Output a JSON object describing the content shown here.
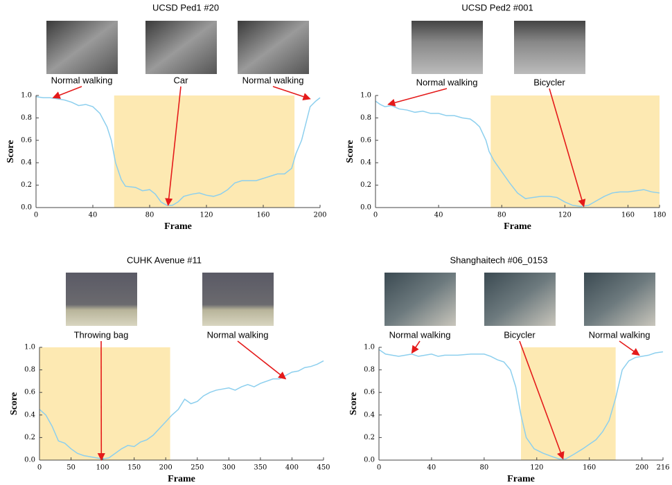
{
  "chart_data": [
    {
      "type": "line",
      "title": "UCSD Ped1 #20",
      "x_label": "Frame",
      "y_label": "Score",
      "x": [
        0,
        5,
        10,
        15,
        20,
        25,
        30,
        35,
        40,
        45,
        50,
        53,
        56,
        60,
        63,
        70,
        75,
        80,
        84,
        88,
        92,
        96,
        100,
        104,
        110,
        115,
        120,
        125,
        130,
        135,
        140,
        145,
        150,
        155,
        160,
        165,
        170,
        175,
        180,
        183,
        187,
        190,
        193,
        197,
        200
      ],
      "series": [
        {
          "color": "#8ccfee",
          "values": [
            0.99,
            0.98,
            0.98,
            0.97,
            0.96,
            0.94,
            0.91,
            0.92,
            0.9,
            0.84,
            0.72,
            0.6,
            0.4,
            0.25,
            0.19,
            0.18,
            0.15,
            0.16,
            0.12,
            0.05,
            0.02,
            0.02,
            0.05,
            0.1,
            0.12,
            0.13,
            0.11,
            0.1,
            0.12,
            0.16,
            0.22,
            0.24,
            0.24,
            0.24,
            0.26,
            0.28,
            0.3,
            0.3,
            0.35,
            0.48,
            0.6,
            0.75,
            0.9,
            0.95,
            0.98
          ]
        }
      ],
      "shaded_range": [
        55,
        182
      ],
      "shade_color": "#fde9b2",
      "annotations": [
        {
          "text": "Normal walking",
          "x": 12,
          "y": 0.98
        },
        {
          "text": "Car",
          "x": 93,
          "y": 0.02
        },
        {
          "text": "Normal walking",
          "x": 193,
          "y": 0.97
        }
      ],
      "arrow_color": "#e41a1a",
      "xlim": [
        0,
        200
      ],
      "xticks": [
        0,
        40,
        80,
        120,
        160,
        200
      ],
      "ylim": [
        0,
        1
      ],
      "yticks": [
        {
          "value": 0,
          "label": "0.0"
        },
        0.2,
        0.4,
        0.6,
        0.8,
        {
          "value": 1,
          "label": "1.0"
        }
      ]
    },
    {
      "type": "line",
      "title": "UCSD Ped2 #001",
      "x_label": "Frame",
      "y_label": "Score",
      "x": [
        0,
        3,
        6,
        10,
        15,
        20,
        25,
        30,
        35,
        40,
        45,
        50,
        55,
        60,
        63,
        66,
        70,
        72,
        75,
        80,
        85,
        90,
        95,
        100,
        105,
        110,
        115,
        120,
        125,
        130,
        135,
        140,
        145,
        150,
        155,
        160,
        165,
        170,
        175,
        180
      ],
      "series": [
        {
          "color": "#8ccfee",
          "values": [
            0.95,
            0.92,
            0.9,
            0.91,
            0.88,
            0.87,
            0.85,
            0.86,
            0.84,
            0.84,
            0.82,
            0.82,
            0.8,
            0.79,
            0.76,
            0.72,
            0.6,
            0.5,
            0.42,
            0.32,
            0.22,
            0.13,
            0.08,
            0.09,
            0.1,
            0.1,
            0.09,
            0.05,
            0.02,
            0.01,
            0.02,
            0.06,
            0.1,
            0.13,
            0.14,
            0.14,
            0.15,
            0.16,
            0.14,
            0.13
          ]
        }
      ],
      "shaded_range": [
        73,
        180
      ],
      "shade_color": "#fde9b2",
      "annotations": [
        {
          "text": "Normal walking",
          "x": 8,
          "y": 0.92
        },
        {
          "text": "Bicycler",
          "x": 132,
          "y": 0.01
        }
      ],
      "arrow_color": "#e41a1a",
      "xlim": [
        0,
        180
      ],
      "xticks": [
        0,
        40,
        80,
        120,
        160,
        180
      ],
      "ylim": [
        0,
        1
      ],
      "yticks": [
        {
          "value": 0,
          "label": "0.0"
        },
        0.2,
        0.4,
        0.6,
        0.8,
        {
          "value": 1,
          "label": "1.0"
        }
      ]
    },
    {
      "type": "line",
      "title": "CUHK Avenue #11",
      "x_label": "Frame",
      "y_label": "Score",
      "x": [
        0,
        10,
        20,
        30,
        40,
        50,
        60,
        70,
        80,
        90,
        100,
        110,
        120,
        130,
        140,
        150,
        160,
        170,
        180,
        190,
        200,
        210,
        220,
        230,
        240,
        250,
        260,
        270,
        280,
        290,
        300,
        310,
        320,
        330,
        340,
        350,
        360,
        370,
        380,
        390,
        400,
        410,
        420,
        430,
        440,
        450
      ],
      "series": [
        {
          "color": "#8ccfee",
          "values": [
            0.45,
            0.4,
            0.3,
            0.17,
            0.15,
            0.1,
            0.06,
            0.04,
            0.03,
            0.02,
            0.01,
            0.02,
            0.06,
            0.1,
            0.13,
            0.12,
            0.16,
            0.18,
            0.22,
            0.28,
            0.34,
            0.4,
            0.45,
            0.54,
            0.5,
            0.52,
            0.57,
            0.6,
            0.62,
            0.63,
            0.64,
            0.62,
            0.65,
            0.67,
            0.65,
            0.68,
            0.7,
            0.72,
            0.72,
            0.75,
            0.78,
            0.79,
            0.82,
            0.83,
            0.85,
            0.88
          ]
        }
      ],
      "shaded_range": [
        0,
        207
      ],
      "shade_color": "#fde9b2",
      "annotations": [
        {
          "text": "Throwing bag",
          "x": 98,
          "y": 0
        },
        {
          "text": "Normal walking",
          "x": 390,
          "y": 0.72
        }
      ],
      "arrow_color": "#e41a1a",
      "xlim": [
        0,
        450
      ],
      "xticks": [
        0,
        50,
        100,
        150,
        200,
        250,
        300,
        350,
        400,
        450
      ],
      "ylim": [
        0,
        1
      ],
      "yticks": [
        {
          "value": 0,
          "label": "0.0"
        },
        0.2,
        0.4,
        0.6,
        0.8,
        {
          "value": 1,
          "label": "1.0"
        }
      ]
    },
    {
      "type": "line",
      "title": "Shanghaitech #06_0153",
      "x_label": "Frame",
      "y_label": "Score",
      "x": [
        0,
        5,
        10,
        15,
        20,
        25,
        30,
        35,
        40,
        45,
        50,
        60,
        70,
        80,
        85,
        90,
        95,
        100,
        104,
        108,
        112,
        118,
        125,
        132,
        137,
        142,
        148,
        155,
        160,
        165,
        170,
        175,
        180,
        185,
        190,
        195,
        200,
        205,
        210,
        216
      ],
      "series": [
        {
          "color": "#8ccfee",
          "values": [
            0.98,
            0.94,
            0.93,
            0.92,
            0.93,
            0.94,
            0.92,
            0.93,
            0.94,
            0.92,
            0.93,
            0.93,
            0.94,
            0.94,
            0.92,
            0.89,
            0.87,
            0.8,
            0.65,
            0.4,
            0.2,
            0.1,
            0.06,
            0.03,
            0.01,
            0.01,
            0.05,
            0.1,
            0.14,
            0.18,
            0.25,
            0.35,
            0.55,
            0.8,
            0.88,
            0.91,
            0.92,
            0.93,
            0.95,
            0.96
          ]
        }
      ],
      "shaded_range": [
        108,
        180
      ],
      "shade_color": "#fde9b2",
      "annotations": [
        {
          "text": "Normal walking",
          "x": 25,
          "y": 0.95
        },
        {
          "text": "Bicycler",
          "x": 140,
          "y": 0.01
        },
        {
          "text": "Normal walking",
          "x": 198,
          "y": 0.93
        }
      ],
      "arrow_color": "#e41a1a",
      "xlim": [
        0,
        216
      ],
      "xticks": [
        0,
        40,
        80,
        120,
        160,
        200,
        216
      ],
      "ylim": [
        0,
        1
      ],
      "yticks": [
        {
          "value": 0,
          "label": "0.0"
        },
        0.2,
        0.4,
        0.6,
        0.8,
        {
          "value": 1,
          "label": "1.0"
        }
      ]
    }
  ]
}
